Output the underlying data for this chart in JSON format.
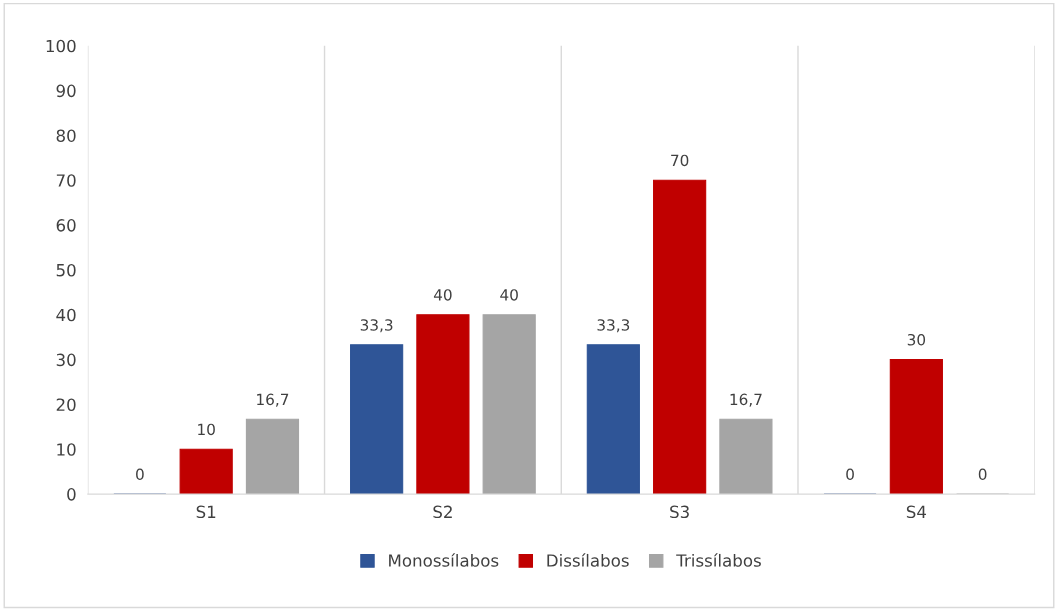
{
  "chart_data": {
    "type": "bar",
    "categories": [
      "S1",
      "S2",
      "S3",
      "S4"
    ],
    "series": [
      {
        "name": "Monossílabos",
        "color": "#2f5597",
        "values": [
          0,
          33.3,
          33.3,
          0
        ],
        "value_labels": [
          "0",
          "33,3",
          "33,3",
          "0"
        ]
      },
      {
        "name": "Dissílabos",
        "color": "#c00000",
        "values": [
          10,
          40,
          70,
          30
        ],
        "value_labels": [
          "10",
          "40",
          "70",
          "30"
        ]
      },
      {
        "name": "Trissílabos",
        "color": "#a5a5a5",
        "values": [
          16.7,
          40,
          16.7,
          0
        ],
        "value_labels": [
          "16,7",
          "40",
          "16,7",
          "0"
        ]
      }
    ],
    "ylim": [
      0,
      100
    ],
    "yticks": [
      0,
      10,
      20,
      30,
      40,
      50,
      60,
      70,
      80,
      90,
      100
    ],
    "grid": "x",
    "legend": "bottom"
  }
}
